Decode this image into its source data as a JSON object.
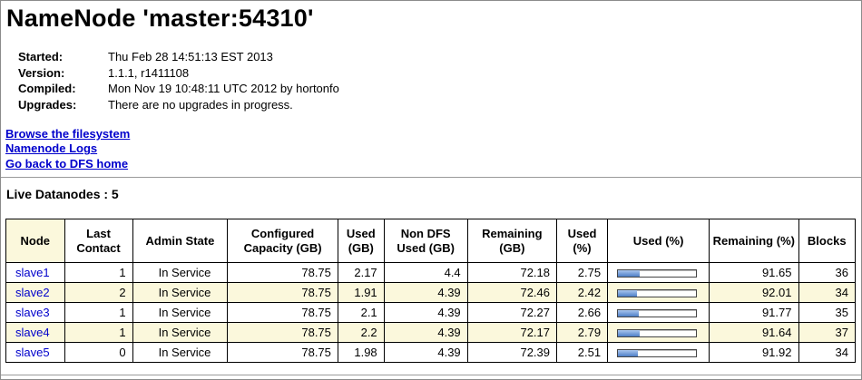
{
  "header": {
    "title": "NameNode 'master:54310'"
  },
  "info": [
    {
      "label": "Started:",
      "value": "Thu Feb 28 14:51:13 EST 2013"
    },
    {
      "label": "Version:",
      "value": "1.1.1, r1411108"
    },
    {
      "label": "Compiled:",
      "value": "Mon Nov 19 10:48:11 UTC 2012 by hortonfo"
    },
    {
      "label": "Upgrades:",
      "value": "There are no upgrades in progress."
    }
  ],
  "links": {
    "browse": "Browse the filesystem",
    "logs": "Namenode Logs",
    "home": "Go back to DFS home"
  },
  "live_title": "Live Datanodes : 5",
  "table": {
    "headers": {
      "node": "Node",
      "last_contact": "Last Contact",
      "admin_state": "Admin State",
      "configured": "Configured Capacity (GB)",
      "used_gb": "Used (GB)",
      "non_dfs": "Non DFS Used (GB)",
      "remaining_gb": "Remaining (GB)",
      "used_pct": "Used (%)",
      "used_bar": "Used (%)",
      "remaining_pct": "Remaining (%)",
      "blocks": "Blocks"
    },
    "rows": [
      {
        "node": "slave1",
        "last_contact": "1",
        "admin_state": "In Service",
        "configured": "78.75",
        "used_gb": "2.17",
        "non_dfs": "4.4",
        "remaining_gb": "72.18",
        "used_pct": "2.75",
        "used_fraction": 0.2758,
        "remaining_pct": "91.65",
        "blocks": "36"
      },
      {
        "node": "slave2",
        "last_contact": "2",
        "admin_state": "In Service",
        "configured": "78.75",
        "used_gb": "1.91",
        "non_dfs": "4.39",
        "remaining_gb": "72.46",
        "used_pct": "2.42",
        "used_fraction": 0.2427,
        "remaining_pct": "92.01",
        "blocks": "34"
      },
      {
        "node": "slave3",
        "last_contact": "1",
        "admin_state": "In Service",
        "configured": "78.75",
        "used_gb": "2.1",
        "non_dfs": "4.39",
        "remaining_gb": "72.27",
        "used_pct": "2.66",
        "used_fraction": 0.2667,
        "remaining_pct": "91.77",
        "blocks": "35"
      },
      {
        "node": "slave4",
        "last_contact": "1",
        "admin_state": "In Service",
        "configured": "78.75",
        "used_gb": "2.2",
        "non_dfs": "4.39",
        "remaining_gb": "72.17",
        "used_pct": "2.79",
        "used_fraction": 0.2797,
        "remaining_pct": "91.64",
        "blocks": "37"
      },
      {
        "node": "slave5",
        "last_contact": "0",
        "admin_state": "In Service",
        "configured": "78.75",
        "used_gb": "1.98",
        "non_dfs": "4.39",
        "remaining_gb": "72.39",
        "used_pct": "2.51",
        "used_fraction": 0.2517,
        "remaining_pct": "91.92",
        "blocks": "34"
      }
    ]
  },
  "colors": {
    "link": "#0000cc",
    "row_highlight": "#fbf8dc",
    "bar_fill": "#4d7fc7"
  }
}
